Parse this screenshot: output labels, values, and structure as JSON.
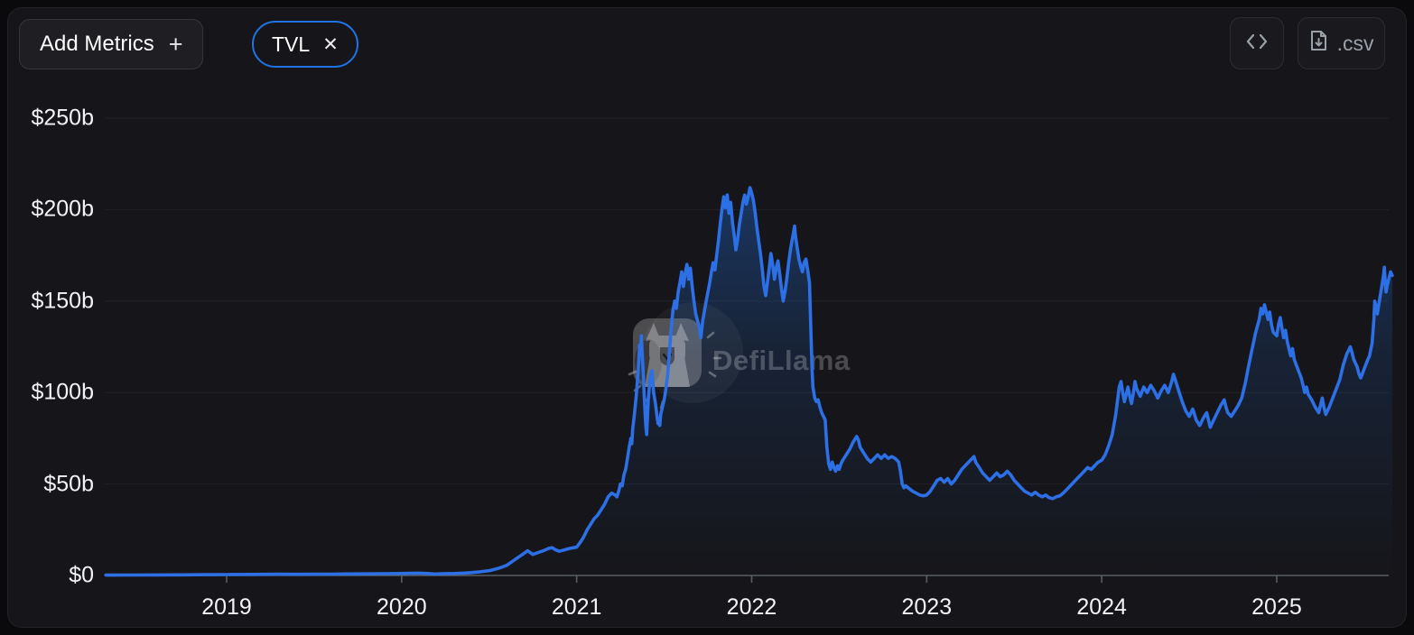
{
  "header": {
    "add_metrics": {
      "label": "Add Metrics",
      "plus_icon": "+"
    },
    "tvl_chip": {
      "label": "TVL",
      "close_icon": "✕"
    },
    "csv_button": {
      "label": ".csv"
    }
  },
  "watermark": {
    "text": "DefiLlama"
  },
  "colors": {
    "accent_blue": "#2172e5",
    "line_blue": "#2d6fe5",
    "page_bg": "#0a0a0c",
    "card_bg": "#16161a",
    "axis_gray": "#595d61",
    "label_white": "#f2f3f4"
  },
  "chart_data": {
    "type": "area",
    "series_name": "TVL",
    "unit": "billions USD",
    "legend": "none",
    "grid": "horizontal-faint",
    "y_axis": {
      "range": [
        0,
        250
      ],
      "ticks": [
        {
          "value": 0,
          "label": "$0"
        },
        {
          "value": 50,
          "label": "$50b"
        },
        {
          "value": 100,
          "label": "$100b"
        },
        {
          "value": 150,
          "label": "$150b"
        },
        {
          "value": 200,
          "label": "$200b"
        },
        {
          "value": 250,
          "label": "$250b"
        }
      ]
    },
    "x_axis": {
      "range": [
        2018.3,
        2025.67
      ],
      "ticks": [
        {
          "value": 2019,
          "label": "2019"
        },
        {
          "value": 2020,
          "label": "2020"
        },
        {
          "value": 2021,
          "label": "2021"
        },
        {
          "value": 2022,
          "label": "2022"
        },
        {
          "value": 2023,
          "label": "2023"
        },
        {
          "value": 2024,
          "label": "2024"
        },
        {
          "value": 2025,
          "label": "2025"
        }
      ]
    },
    "points": [
      [
        2018.31,
        0.2
      ],
      [
        2018.45,
        0.25
      ],
      [
        2018.6,
        0.3
      ],
      [
        2018.75,
        0.35
      ],
      [
        2018.9,
        0.45
      ],
      [
        2019.0,
        0.5
      ],
      [
        2019.15,
        0.6
      ],
      [
        2019.3,
        0.7
      ],
      [
        2019.4,
        0.65
      ],
      [
        2019.5,
        0.7
      ],
      [
        2019.6,
        0.75
      ],
      [
        2019.7,
        0.85
      ],
      [
        2019.8,
        0.9
      ],
      [
        2019.9,
        1.0
      ],
      [
        2020.0,
        1.1
      ],
      [
        2020.05,
        1.2
      ],
      [
        2020.1,
        1.3
      ],
      [
        2020.15,
        1.1
      ],
      [
        2020.19,
        0.8
      ],
      [
        2020.23,
        1.0
      ],
      [
        2020.3,
        1.1
      ],
      [
        2020.35,
        1.3
      ],
      [
        2020.4,
        1.6
      ],
      [
        2020.45,
        2.0
      ],
      [
        2020.5,
        2.6
      ],
      [
        2020.55,
        3.8
      ],
      [
        2020.6,
        5.5
      ],
      [
        2020.63,
        7.5
      ],
      [
        2020.66,
        9.5
      ],
      [
        2020.69,
        11.5
      ],
      [
        2020.72,
        13.5
      ],
      [
        2020.75,
        11.5
      ],
      [
        2020.78,
        12.5
      ],
      [
        2020.81,
        13.5
      ],
      [
        2020.84,
        14.8
      ],
      [
        2020.86,
        15.2
      ],
      [
        2020.88,
        14.0
      ],
      [
        2020.9,
        13.2
      ],
      [
        2020.93,
        14.0
      ],
      [
        2020.96,
        14.8
      ],
      [
        2021.0,
        15.5
      ],
      [
        2021.02,
        18
      ],
      [
        2021.04,
        21
      ],
      [
        2021.06,
        25
      ],
      [
        2021.08,
        28
      ],
      [
        2021.1,
        31
      ],
      [
        2021.12,
        33
      ],
      [
        2021.14,
        36
      ],
      [
        2021.16,
        39
      ],
      [
        2021.18,
        43
      ],
      [
        2021.2,
        45
      ],
      [
        2021.22,
        44
      ],
      [
        2021.23,
        43
      ],
      [
        2021.24,
        46
      ],
      [
        2021.25,
        50
      ],
      [
        2021.26,
        49
      ],
      [
        2021.27,
        55
      ],
      [
        2021.28,
        58
      ],
      [
        2021.29,
        64
      ],
      [
        2021.3,
        70
      ],
      [
        2021.31,
        75
      ],
      [
        2021.315,
        72
      ],
      [
        2021.32,
        80
      ],
      [
        2021.33,
        88
      ],
      [
        2021.34,
        98
      ],
      [
        2021.35,
        110
      ],
      [
        2021.355,
        118
      ],
      [
        2021.36,
        126
      ],
      [
        2021.365,
        122
      ],
      [
        2021.37,
        131
      ],
      [
        2021.375,
        120
      ],
      [
        2021.38,
        112
      ],
      [
        2021.385,
        100
      ],
      [
        2021.39,
        90
      ],
      [
        2021.395,
        82
      ],
      [
        2021.4,
        77
      ],
      [
        2021.405,
        88
      ],
      [
        2021.41,
        97
      ],
      [
        2021.415,
        103
      ],
      [
        2021.42,
        108
      ],
      [
        2021.43,
        112
      ],
      [
        2021.435,
        106
      ],
      [
        2021.44,
        100
      ],
      [
        2021.45,
        94
      ],
      [
        2021.455,
        90
      ],
      [
        2021.46,
        86
      ],
      [
        2021.465,
        83
      ],
      [
        2021.47,
        86
      ],
      [
        2021.475,
        82
      ],
      [
        2021.48,
        88
      ],
      [
        2021.49,
        92
      ],
      [
        2021.5,
        96
      ],
      [
        2021.51,
        102
      ],
      [
        2021.52,
        110
      ],
      [
        2021.53,
        122
      ],
      [
        2021.54,
        135
      ],
      [
        2021.55,
        145
      ],
      [
        2021.56,
        150
      ],
      [
        2021.57,
        146
      ],
      [
        2021.58,
        155
      ],
      [
        2021.59,
        160
      ],
      [
        2021.6,
        166
      ],
      [
        2021.61,
        158
      ],
      [
        2021.62,
        165
      ],
      [
        2021.63,
        170
      ],
      [
        2021.64,
        162
      ],
      [
        2021.65,
        168
      ],
      [
        2021.66,
        158
      ],
      [
        2021.67,
        150
      ],
      [
        2021.68,
        143
      ],
      [
        2021.7,
        136
      ],
      [
        2021.71,
        130
      ],
      [
        2021.72,
        139
      ],
      [
        2021.74,
        150
      ],
      [
        2021.76,
        160
      ],
      [
        2021.77,
        166
      ],
      [
        2021.78,
        171
      ],
      [
        2021.79,
        167
      ],
      [
        2021.8,
        175
      ],
      [
        2021.81,
        183
      ],
      [
        2021.82,
        192
      ],
      [
        2021.83,
        200
      ],
      [
        2021.84,
        207
      ],
      [
        2021.85,
        201
      ],
      [
        2021.86,
        208
      ],
      [
        2021.87,
        198
      ],
      [
        2021.88,
        204
      ],
      [
        2021.89,
        193
      ],
      [
        2021.9,
        186
      ],
      [
        2021.91,
        178
      ],
      [
        2021.92,
        184
      ],
      [
        2021.93,
        192
      ],
      [
        2021.94,
        198
      ],
      [
        2021.95,
        204
      ],
      [
        2021.96,
        208
      ],
      [
        2021.97,
        203
      ],
      [
        2021.98,
        207
      ],
      [
        2021.99,
        212
      ],
      [
        2022.0,
        209
      ],
      [
        2022.01,
        205
      ],
      [
        2022.02,
        198
      ],
      [
        2022.03,
        190
      ],
      [
        2022.04,
        183
      ],
      [
        2022.05,
        176
      ],
      [
        2022.06,
        168
      ],
      [
        2022.07,
        158
      ],
      [
        2022.08,
        153
      ],
      [
        2022.09,
        160
      ],
      [
        2022.1,
        168
      ],
      [
        2022.11,
        176
      ],
      [
        2022.12,
        170
      ],
      [
        2022.13,
        162
      ],
      [
        2022.14,
        168
      ],
      [
        2022.15,
        172
      ],
      [
        2022.16,
        165
      ],
      [
        2022.17,
        157
      ],
      [
        2022.18,
        150
      ],
      [
        2022.19,
        155
      ],
      [
        2022.2,
        162
      ],
      [
        2022.21,
        170
      ],
      [
        2022.22,
        177
      ],
      [
        2022.23,
        183
      ],
      [
        2022.24,
        188
      ],
      [
        2022.245,
        191
      ],
      [
        2022.25,
        186
      ],
      [
        2022.26,
        179
      ],
      [
        2022.27,
        173
      ],
      [
        2022.28,
        169
      ],
      [
        2022.29,
        166
      ],
      [
        2022.3,
        171
      ],
      [
        2022.31,
        173
      ],
      [
        2022.32,
        167
      ],
      [
        2022.33,
        160
      ],
      [
        2022.335,
        145
      ],
      [
        2022.34,
        128
      ],
      [
        2022.345,
        112
      ],
      [
        2022.35,
        103
      ],
      [
        2022.36,
        97
      ],
      [
        2022.37,
        95
      ],
      [
        2022.38,
        96
      ],
      [
        2022.39,
        92
      ],
      [
        2022.4,
        89
      ],
      [
        2022.41,
        87
      ],
      [
        2022.42,
        85
      ],
      [
        2022.43,
        70
      ],
      [
        2022.44,
        61
      ],
      [
        2022.45,
        58
      ],
      [
        2022.46,
        62
      ],
      [
        2022.47,
        59
      ],
      [
        2022.48,
        57
      ],
      [
        2022.49,
        60
      ],
      [
        2022.5,
        58
      ],
      [
        2022.51,
        61
      ],
      [
        2022.52,
        63
      ],
      [
        2022.54,
        66
      ],
      [
        2022.56,
        69
      ],
      [
        2022.58,
        73
      ],
      [
        2022.6,
        76
      ],
      [
        2022.61,
        74
      ],
      [
        2022.62,
        70
      ],
      [
        2022.64,
        67
      ],
      [
        2022.66,
        64
      ],
      [
        2022.68,
        62
      ],
      [
        2022.7,
        64
      ],
      [
        2022.72,
        66
      ],
      [
        2022.74,
        64
      ],
      [
        2022.76,
        66
      ],
      [
        2022.78,
        64
      ],
      [
        2022.8,
        65
      ],
      [
        2022.82,
        64
      ],
      [
        2022.84,
        62
      ],
      [
        2022.85,
        57
      ],
      [
        2022.86,
        50
      ],
      [
        2022.87,
        48
      ],
      [
        2022.88,
        49
      ],
      [
        2022.9,
        47.5
      ],
      [
        2022.92,
        46
      ],
      [
        2022.94,
        45
      ],
      [
        2022.96,
        44
      ],
      [
        2022.98,
        43.5
      ],
      [
        2023.0,
        44
      ],
      [
        2023.02,
        46
      ],
      [
        2023.04,
        49
      ],
      [
        2023.06,
        52
      ],
      [
        2023.08,
        53
      ],
      [
        2023.1,
        51
      ],
      [
        2023.12,
        53
      ],
      [
        2023.14,
        50
      ],
      [
        2023.16,
        52
      ],
      [
        2023.18,
        55
      ],
      [
        2023.2,
        58
      ],
      [
        2023.22,
        60
      ],
      [
        2023.24,
        62
      ],
      [
        2023.26,
        64
      ],
      [
        2023.27,
        65
      ],
      [
        2023.28,
        62
      ],
      [
        2023.3,
        59
      ],
      [
        2023.32,
        56
      ],
      [
        2023.34,
        54
      ],
      [
        2023.36,
        52
      ],
      [
        2023.38,
        54
      ],
      [
        2023.4,
        56
      ],
      [
        2023.42,
        54
      ],
      [
        2023.44,
        55
      ],
      [
        2023.46,
        57
      ],
      [
        2023.48,
        55
      ],
      [
        2023.5,
        52
      ],
      [
        2023.52,
        50
      ],
      [
        2023.54,
        48
      ],
      [
        2023.56,
        46
      ],
      [
        2023.58,
        45
      ],
      [
        2023.6,
        44
      ],
      [
        2023.62,
        45.5
      ],
      [
        2023.64,
        44
      ],
      [
        2023.66,
        43
      ],
      [
        2023.68,
        44
      ],
      [
        2023.7,
        42.5
      ],
      [
        2023.72,
        42
      ],
      [
        2023.74,
        43
      ],
      [
        2023.76,
        43.5
      ],
      [
        2023.78,
        45
      ],
      [
        2023.8,
        47
      ],
      [
        2023.82,
        49
      ],
      [
        2023.84,
        51
      ],
      [
        2023.86,
        53
      ],
      [
        2023.88,
        55
      ],
      [
        2023.9,
        57
      ],
      [
        2023.92,
        59
      ],
      [
        2023.94,
        58
      ],
      [
        2023.96,
        60
      ],
      [
        2023.98,
        62
      ],
      [
        2024.0,
        63
      ],
      [
        2024.02,
        66
      ],
      [
        2024.04,
        71
      ],
      [
        2024.06,
        77
      ],
      [
        2024.08,
        88
      ],
      [
        2024.1,
        103
      ],
      [
        2024.11,
        106
      ],
      [
        2024.12,
        100
      ],
      [
        2024.13,
        95
      ],
      [
        2024.14,
        99
      ],
      [
        2024.15,
        103
      ],
      [
        2024.16,
        98
      ],
      [
        2024.17,
        94
      ],
      [
        2024.18,
        99
      ],
      [
        2024.19,
        106
      ],
      [
        2024.2,
        102
      ],
      [
        2024.22,
        98
      ],
      [
        2024.24,
        103
      ],
      [
        2024.26,
        100
      ],
      [
        2024.28,
        104
      ],
      [
        2024.3,
        101
      ],
      [
        2024.32,
        97
      ],
      [
        2024.34,
        101
      ],
      [
        2024.36,
        104
      ],
      [
        2024.38,
        100
      ],
      [
        2024.4,
        106
      ],
      [
        2024.41,
        110
      ],
      [
        2024.42,
        107
      ],
      [
        2024.44,
        101
      ],
      [
        2024.46,
        95
      ],
      [
        2024.48,
        90
      ],
      [
        2024.5,
        87
      ],
      [
        2024.52,
        91
      ],
      [
        2024.53,
        88
      ],
      [
        2024.54,
        85
      ],
      [
        2024.56,
        82
      ],
      [
        2024.58,
        86
      ],
      [
        2024.6,
        89
      ],
      [
        2024.61,
        85
      ],
      [
        2024.62,
        81
      ],
      [
        2024.64,
        85
      ],
      [
        2024.66,
        89
      ],
      [
        2024.68,
        93
      ],
      [
        2024.7,
        96
      ],
      [
        2024.71,
        92
      ],
      [
        2024.72,
        89
      ],
      [
        2024.74,
        87
      ],
      [
        2024.76,
        90
      ],
      [
        2024.78,
        93
      ],
      [
        2024.8,
        97
      ],
      [
        2024.82,
        105
      ],
      [
        2024.84,
        115
      ],
      [
        2024.86,
        124
      ],
      [
        2024.88,
        133
      ],
      [
        2024.9,
        140
      ],
      [
        2024.91,
        146
      ],
      [
        2024.92,
        143
      ],
      [
        2024.93,
        148
      ],
      [
        2024.94,
        144
      ],
      [
        2024.95,
        140
      ],
      [
        2024.96,
        144
      ],
      [
        2024.97,
        137
      ],
      [
        2024.98,
        133
      ],
      [
        2025.0,
        131
      ],
      [
        2025.01,
        137
      ],
      [
        2025.02,
        141
      ],
      [
        2025.03,
        135
      ],
      [
        2025.04,
        130
      ],
      [
        2025.05,
        134
      ],
      [
        2025.06,
        128
      ],
      [
        2025.07,
        124
      ],
      [
        2025.08,
        120
      ],
      [
        2025.09,
        124
      ],
      [
        2025.1,
        118
      ],
      [
        2025.12,
        113
      ],
      [
        2025.14,
        108
      ],
      [
        2025.15,
        104
      ],
      [
        2025.16,
        100
      ],
      [
        2025.17,
        103
      ],
      [
        2025.18,
        99
      ],
      [
        2025.2,
        96
      ],
      [
        2025.22,
        92
      ],
      [
        2025.24,
        89
      ],
      [
        2025.25,
        93
      ],
      [
        2025.26,
        97
      ],
      [
        2025.27,
        92
      ],
      [
        2025.28,
        88
      ],
      [
        2025.3,
        92
      ],
      [
        2025.32,
        97
      ],
      [
        2025.34,
        102
      ],
      [
        2025.36,
        107
      ],
      [
        2025.38,
        115
      ],
      [
        2025.4,
        121
      ],
      [
        2025.42,
        125
      ],
      [
        2025.43,
        122
      ],
      [
        2025.44,
        118
      ],
      [
        2025.46,
        114
      ],
      [
        2025.47,
        110
      ],
      [
        2025.48,
        108
      ],
      [
        2025.5,
        113
      ],
      [
        2025.52,
        118
      ],
      [
        2025.53,
        120
      ],
      [
        2025.545,
        127
      ],
      [
        2025.555,
        140
      ],
      [
        2025.56,
        150
      ],
      [
        2025.57,
        146
      ],
      [
        2025.575,
        143
      ],
      [
        2025.59,
        152
      ],
      [
        2025.6,
        158
      ],
      [
        2025.61,
        164
      ],
      [
        2025.615,
        168.5
      ],
      [
        2025.62,
        160
      ],
      [
        2025.625,
        155
      ],
      [
        2025.63,
        158
      ],
      [
        2025.64,
        162
      ],
      [
        2025.65,
        166
      ],
      [
        2025.66,
        164
      ]
    ]
  }
}
